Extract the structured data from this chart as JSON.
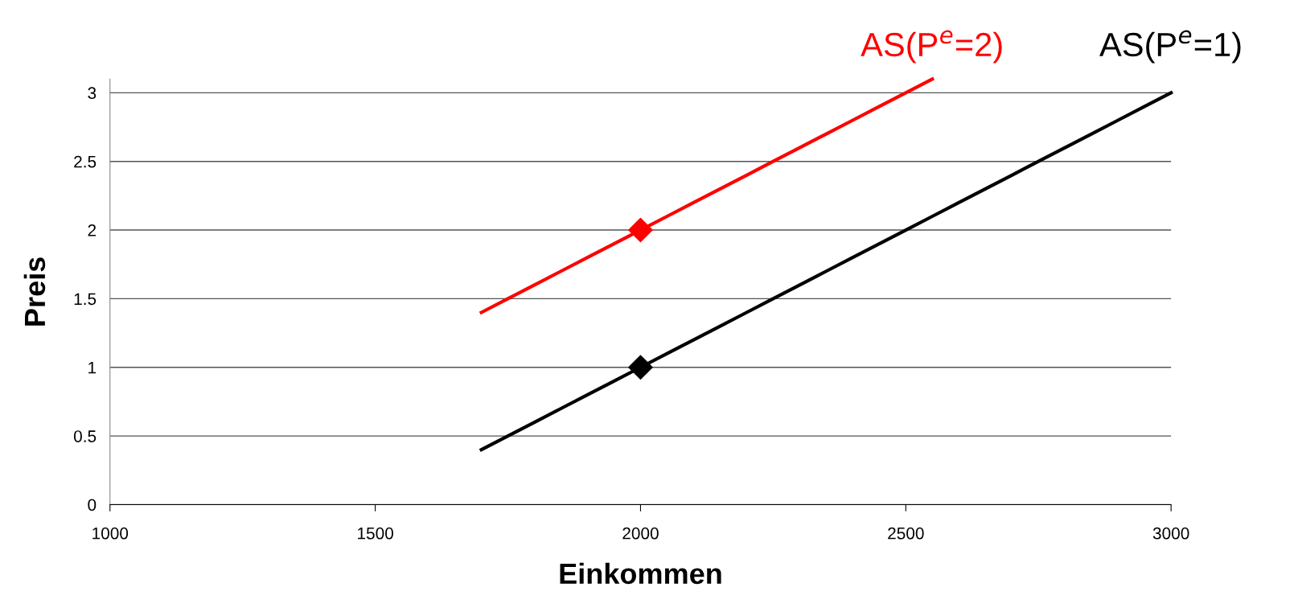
{
  "chart_data": {
    "type": "line",
    "xlabel": "Einkommen",
    "ylabel": "Preis",
    "xlim": [
      1000,
      3000
    ],
    "xticks": [
      1000,
      1500,
      2000,
      2500,
      3000
    ],
    "ylim": [
      0,
      3.1
    ],
    "yticks": [
      0,
      0.5,
      1,
      1.5,
      2,
      2.5,
      3
    ],
    "grid": "y",
    "legend": false,
    "marker": "none",
    "line_style": "solid",
    "series": [
      {
        "name": "AS(P$^{e}$=2)",
        "color": "#ff0000",
        "x": [
          1700,
          1750,
          1800,
          1850,
          1900,
          1950,
          2000,
          2050,
          2100,
          2150,
          2200,
          2250,
          2300,
          2350,
          2400,
          2450,
          2500,
          2550
        ],
        "values": [
          1.4,
          1.5,
          1.6,
          1.7,
          1.8,
          1.9,
          2.0,
          2.1,
          2.2,
          2.3,
          2.4,
          2.5,
          2.6,
          2.7,
          2.8,
          2.9,
          3.0,
          3.1
        ]
      },
      {
        "name": "AS(P$^{e}$=1)",
        "color": "#000000",
        "x": [
          1700,
          1750,
          1800,
          1850,
          1900,
          1950,
          2000,
          2050,
          2100,
          2150,
          2200,
          2250,
          2300,
          2350,
          2400,
          2450,
          2500,
          2550,
          2600,
          2650,
          2700,
          2750,
          2800,
          2850,
          2900,
          2950,
          3000
        ],
        "values": [
          0.4,
          0.5,
          0.6,
          0.7,
          0.8,
          0.9,
          1.0,
          1.1,
          1.2,
          1.3,
          1.4,
          1.5,
          1.6,
          1.7,
          1.8,
          1.9,
          2.0,
          2.1,
          2.2,
          2.3,
          2.4,
          2.5,
          2.6,
          2.7,
          2.8,
          2.9,
          3.0
        ]
      },
      {
        "type": "scatter",
        "marker": "diamond",
        "color": "#ff0000",
        "x": [
          2000
        ],
        "values": [
          2
        ]
      },
      {
        "type": "scatter",
        "marker": "diamond",
        "color": "#000000",
        "x": [
          2000
        ],
        "values": [
          1
        ]
      }
    ]
  }
}
